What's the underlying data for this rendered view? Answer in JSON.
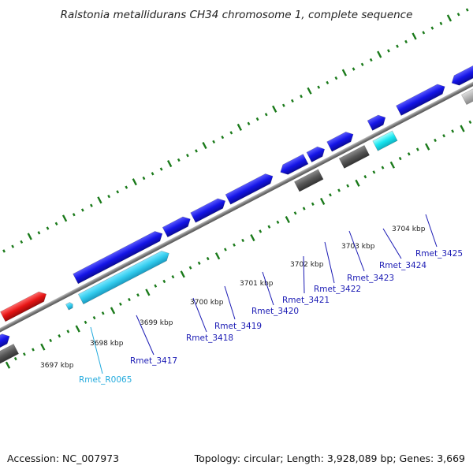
{
  "title": "Ralstonia metallidurans CH34 chromosome 1, complete sequence",
  "footer": {
    "accession": "Accession: NC_007973",
    "topology": "Topology: circular; Length: 3,928,089 bp; Genes: 3,669"
  },
  "scale_labels": [
    "3697 kbp",
    "3698 kbp",
    "3699 kbp",
    "3700 kbp",
    "3701 kbp",
    "3702 kbp",
    "3703 kbp",
    "3704 kbp"
  ],
  "gene_labels": [
    "Rmet_R0065",
    "Rmet_3417",
    "Rmet_3418",
    "Rmet_3419",
    "Rmet_3420",
    "Rmet_3421",
    "Rmet_3422",
    "Rmet_3423",
    "Rmet_3424",
    "Rmet_3425"
  ],
  "colors": {
    "backbone": "#808080",
    "forward_gene": "#1414e6",
    "reverse_gene": "#1414e6",
    "rna_gene": "#33ccee",
    "red_feature": "#e61414",
    "gray_feature": "#555555",
    "light_gray_feature": "#b4b4b4",
    "cyan_feature": "#19e6f0",
    "tick": "#1a7a1a",
    "label_blue": "#1a1ab4",
    "label_cyan": "#22aadd"
  }
}
